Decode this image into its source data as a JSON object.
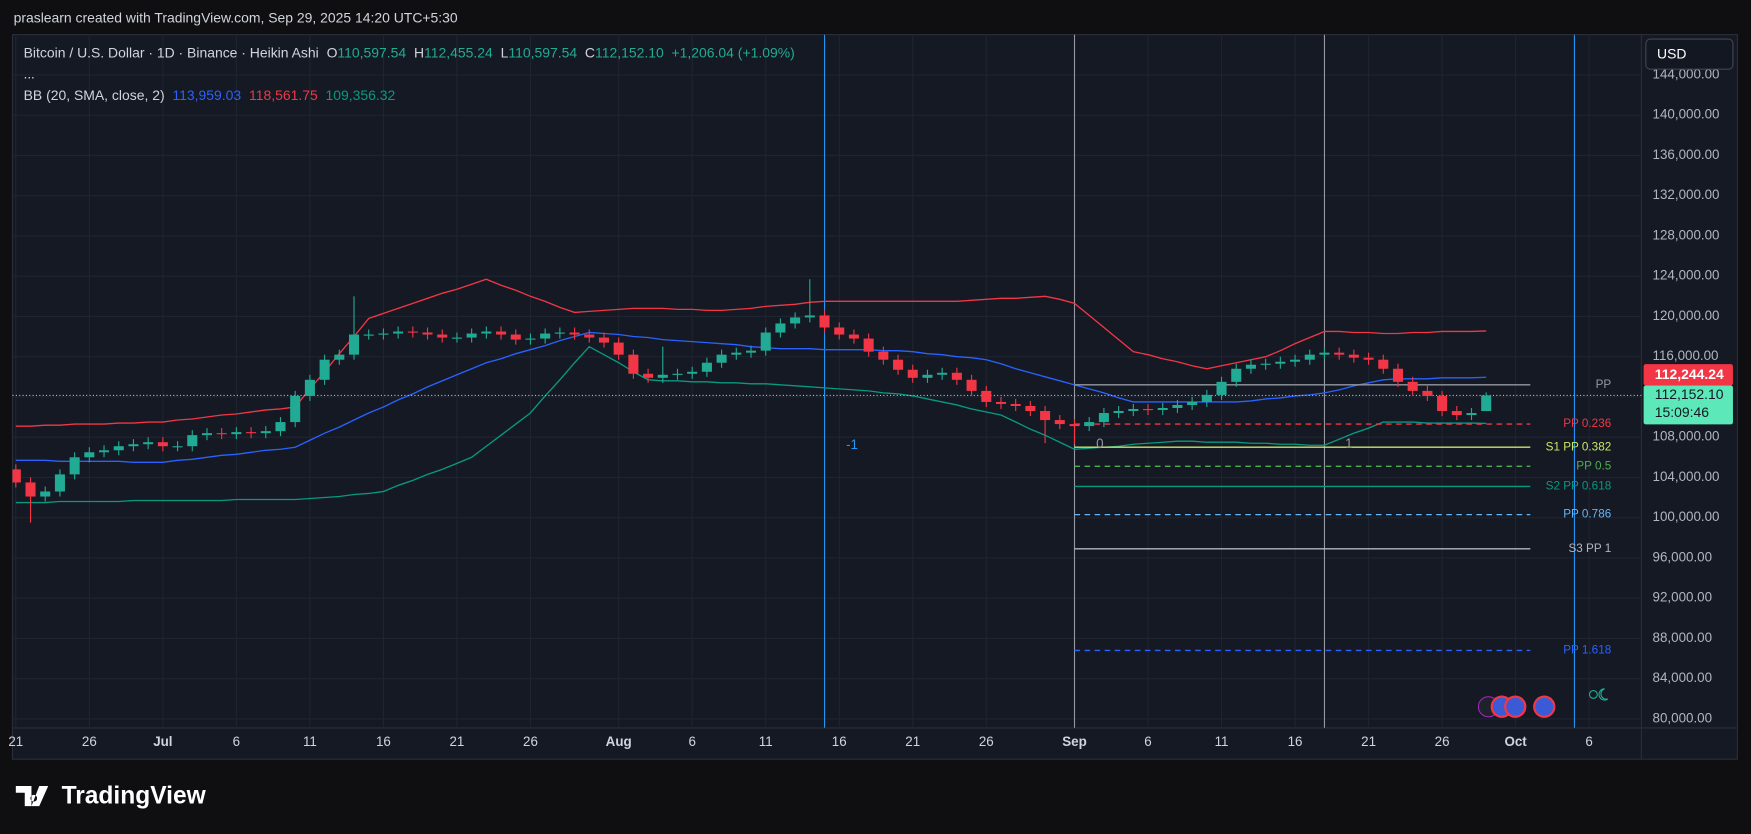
{
  "header": {
    "attribution": "praslearn created with TradingView.com, Sep 29, 2025 14:20 UTC+5:30"
  },
  "footer": {
    "logo": "TradingView"
  },
  "chart_data": {
    "type": "candlestick",
    "title": "Bitcoin / U.S. Dollar · 1D · Binance · Heikin Ashi",
    "ohlc_legend": [
      {
        "label": "O",
        "value": "110,597.54"
      },
      {
        "label": "H",
        "value": "112,455.24"
      },
      {
        "label": "L",
        "value": "110,597.54"
      },
      {
        "label": "C",
        "value": "112,152.10"
      }
    ],
    "change": "+1,206.04 (+1.09%)",
    "more": "...",
    "currency": "USD",
    "up_color": "#22ab94",
    "down_color": "#f23645",
    "categories": [
      "21",
      null,
      null,
      null,
      null,
      "26",
      null,
      null,
      null,
      null,
      "Jul",
      null,
      null,
      null,
      null,
      "6",
      null,
      null,
      null,
      null,
      "11",
      null,
      null,
      null,
      null,
      "16",
      null,
      null,
      null,
      null,
      "21",
      null,
      null,
      null,
      null,
      "26",
      null,
      null,
      null,
      null,
      null,
      "Aug",
      null,
      null,
      null,
      null,
      "6",
      null,
      null,
      null,
      null,
      "11",
      null,
      null,
      null,
      null,
      "16",
      null,
      null,
      null,
      null,
      "21",
      null,
      null,
      null,
      null,
      "26",
      null,
      null,
      null,
      null,
      null,
      "Sep",
      null,
      null,
      null,
      null,
      "6",
      null,
      null,
      null,
      null,
      "11",
      null,
      null,
      null,
      null,
      "16",
      null,
      null,
      null,
      null,
      "21",
      null,
      null,
      null,
      null,
      "26",
      null,
      null,
      null,
      null,
      "Oct",
      null,
      null,
      null,
      null,
      "6",
      null,
      null,
      null
    ],
    "open": [
      104800,
      103500,
      102100,
      102600,
      104300,
      106000,
      106500,
      106700,
      107100,
      107300,
      107500,
      107100,
      107100,
      108200,
      108400,
      108300,
      108500,
      108400,
      108600,
      109500,
      112100,
      113700,
      115700,
      116200,
      118200,
      118200,
      118300,
      118500,
      118400,
      118200,
      117900,
      117900,
      118300,
      118500,
      118200,
      117700,
      117800,
      118300,
      118400,
      118200,
      117900,
      117400,
      116200,
      114300,
      113900,
      114200,
      114300,
      114500,
      115400,
      116200,
      116400,
      116600,
      118400,
      119300,
      119900,
      120100,
      118900,
      118200,
      117800,
      116500,
      115700,
      114700,
      113900,
      114200,
      114400,
      113700,
      112600,
      111500,
      111300,
      111100,
      110600,
      109700,
      109300,
      109100,
      109500,
      110400,
      110600,
      110800,
      110700,
      110900,
      111200,
      111500,
      112200,
      113500,
      114800,
      115200,
      115300,
      115500,
      115700,
      116200,
      116400,
      116200,
      115900,
      115700,
      114800,
      113500,
      112600,
      112100,
      110600,
      110200,
      110597.54,
      null,
      null,
      null,
      null,
      null,
      null,
      null,
      null,
      null,
      null
    ],
    "high": [
      105300,
      104000,
      103100,
      104800,
      106500,
      107000,
      107200,
      107600,
      107800,
      108000,
      108000,
      107600,
      108700,
      108900,
      108900,
      109000,
      109000,
      109100,
      110000,
      112600,
      114200,
      116200,
      116700,
      122000,
      118700,
      118800,
      119000,
      119000,
      118900,
      118700,
      118400,
      118800,
      119000,
      119000,
      118700,
      118300,
      118800,
      118900,
      118900,
      118700,
      118400,
      117900,
      116700,
      114800,
      117000,
      114800,
      115000,
      115900,
      116700,
      116900,
      117100,
      118900,
      119800,
      120400,
      123700,
      120600,
      119400,
      118700,
      118300,
      117000,
      116200,
      115200,
      114700,
      114900,
      114900,
      114200,
      113100,
      112000,
      111800,
      111600,
      111100,
      110200,
      109800,
      110000,
      110900,
      111100,
      111300,
      111300,
      111400,
      111700,
      112000,
      112700,
      114000,
      115300,
      115700,
      115800,
      116000,
      116200,
      116700,
      116900,
      116900,
      116700,
      116400,
      116200,
      115300,
      114000,
      113100,
      112600,
      111100,
      110900,
      112455.24,
      null,
      null,
      null,
      null,
      null,
      null,
      null,
      null,
      null,
      null
    ],
    "low": [
      103000,
      99500,
      101600,
      102100,
      103800,
      105500,
      106000,
      106200,
      106600,
      106800,
      106600,
      106600,
      106600,
      107700,
      107800,
      107800,
      107900,
      107900,
      108100,
      109000,
      111600,
      113200,
      115200,
      115700,
      117700,
      117700,
      117800,
      117900,
      117700,
      117400,
      117400,
      117400,
      117800,
      117700,
      117200,
      117200,
      117300,
      117800,
      117700,
      117400,
      116900,
      115700,
      113800,
      113400,
      113400,
      113700,
      113800,
      114000,
      114900,
      115700,
      115900,
      116100,
      117900,
      118800,
      119400,
      118400,
      117700,
      117300,
      116000,
      115200,
      114200,
      113400,
      113400,
      113700,
      113200,
      112100,
      111000,
      110800,
      110600,
      110100,
      107400,
      108800,
      107300,
      108600,
      109000,
      109900,
      110100,
      110200,
      110200,
      110400,
      110700,
      111000,
      111700,
      113000,
      114300,
      114700,
      114800,
      115000,
      115200,
      115700,
      115700,
      115400,
      115200,
      114300,
      113000,
      112100,
      111600,
      110100,
      109700,
      109700,
      110597.54,
      null,
      null,
      null,
      null,
      null,
      null,
      null,
      null,
      null,
      null
    ],
    "close": [
      103500,
      102100,
      102600,
      104300,
      106000,
      106500,
      106700,
      107100,
      107300,
      107500,
      107100,
      107100,
      108200,
      108400,
      108300,
      108500,
      108400,
      108600,
      109500,
      112100,
      113700,
      115700,
      116200,
      118200,
      118200,
      118300,
      118500,
      118400,
      118200,
      117900,
      117900,
      118300,
      118500,
      118200,
      117700,
      117800,
      118300,
      118400,
      118200,
      117900,
      117400,
      116200,
      114300,
      113900,
      114200,
      114300,
      114500,
      115400,
      116200,
      116400,
      116600,
      118400,
      119300,
      119900,
      120100,
      118900,
      118200,
      117800,
      116500,
      115700,
      114700,
      113900,
      114200,
      114400,
      113700,
      112600,
      111500,
      111300,
      111100,
      110600,
      109700,
      109300,
      109100,
      109500,
      110400,
      110600,
      110800,
      110700,
      110900,
      111200,
      111500,
      112200,
      113500,
      114800,
      115200,
      115300,
      115500,
      115700,
      116200,
      116400,
      116200,
      115900,
      115700,
      114800,
      113500,
      112600,
      112100,
      110600,
      110200,
      110400,
      112152.1,
      null,
      null,
      null,
      null,
      null,
      null,
      null,
      null,
      null,
      null
    ],
    "indicator": {
      "name": "BB (20, SMA, close, 2)",
      "series": [
        {
          "color": "#2962ff",
          "last_value_label": "113,959.03",
          "values": [
            105700,
            105700,
            105700,
            105600,
            105600,
            105600,
            105600,
            105600,
            105500,
            105500,
            105500,
            105700,
            105800,
            106000,
            106200,
            106300,
            106500,
            106700,
            106800,
            107000,
            107700,
            108400,
            109000,
            109700,
            110400,
            111000,
            111700,
            112300,
            113000,
            113600,
            114200,
            114800,
            115400,
            115800,
            116300,
            116700,
            117100,
            117600,
            118000,
            118400,
            118300,
            118200,
            118000,
            117900,
            117700,
            117600,
            117500,
            117400,
            117300,
            117200,
            117000,
            116900,
            116800,
            116800,
            116800,
            116700,
            116700,
            116700,
            116700,
            116600,
            116600,
            116500,
            116300,
            116200,
            116000,
            115900,
            115700,
            115300,
            114800,
            114400,
            114000,
            113600,
            113200,
            112800,
            112400,
            111900,
            111500,
            111500,
            111500,
            111500,
            111500,
            111500,
            111500,
            111500,
            111600,
            111800,
            111900,
            112100,
            112200,
            112400,
            112700,
            113100,
            113400,
            113700,
            113800,
            113800,
            113800,
            113900,
            113900,
            113900,
            113959.03,
            null,
            null,
            null,
            null,
            null,
            null,
            null,
            null,
            null,
            null
          ]
        },
        {
          "color": "#f23645",
          "last_value_label": "118,561.75",
          "values": [
            109100,
            109100,
            109200,
            109200,
            109300,
            109300,
            109300,
            109400,
            109400,
            109500,
            109500,
            109700,
            109800,
            110000,
            110200,
            110300,
            110500,
            110700,
            110800,
            111000,
            112800,
            114500,
            116300,
            118000,
            119800,
            120300,
            120800,
            121300,
            121800,
            122300,
            122700,
            123200,
            123700,
            123100,
            122600,
            122000,
            121500,
            120900,
            120400,
            120500,
            120600,
            120700,
            120800,
            120800,
            120800,
            120700,
            120700,
            120600,
            120600,
            120700,
            120800,
            121000,
            121100,
            121200,
            121400,
            121500,
            121500,
            121500,
            121500,
            121500,
            121500,
            121500,
            121500,
            121500,
            121500,
            121600,
            121700,
            121800,
            121800,
            121900,
            122000,
            121700,
            121300,
            120100,
            118900,
            117700,
            116500,
            116200,
            115800,
            115500,
            115100,
            114800,
            115100,
            115400,
            115700,
            116000,
            116600,
            117300,
            117900,
            118500,
            118500,
            118400,
            118400,
            118300,
            118300,
            118400,
            118400,
            118500,
            118500,
            118500,
            118561.75,
            null,
            null,
            null,
            null,
            null,
            null,
            null,
            null,
            null,
            null
          ]
        },
        {
          "color": "#089981",
          "last_value_label": "109,356.32",
          "values": [
            101500,
            101500,
            101500,
            101600,
            101600,
            101600,
            101600,
            101600,
            101700,
            101700,
            101700,
            101700,
            101700,
            101700,
            101700,
            101800,
            101800,
            101800,
            101800,
            101800,
            101900,
            102000,
            102100,
            102300,
            102400,
            102600,
            103200,
            103700,
            104300,
            104800,
            105400,
            106000,
            107100,
            108200,
            109300,
            110400,
            112100,
            113700,
            115400,
            117000,
            116200,
            115400,
            114500,
            113700,
            113600,
            113600,
            113500,
            113500,
            113400,
            113400,
            113300,
            113300,
            113200,
            113100,
            113000,
            112900,
            112800,
            112700,
            112600,
            112400,
            112300,
            112100,
            111800,
            111500,
            111200,
            110800,
            110500,
            110200,
            109500,
            108800,
            108200,
            107500,
            106800,
            106900,
            107000,
            107100,
            107300,
            107400,
            107500,
            107600,
            107600,
            107500,
            107500,
            107500,
            107400,
            107400,
            107300,
            107300,
            107200,
            107200,
            107800,
            108400,
            108900,
            109500,
            109500,
            109500,
            109400,
            109400,
            109400,
            109400,
            109356.32,
            null,
            null,
            null,
            null,
            null,
            null,
            null,
            null,
            null,
            null
          ]
        }
      ]
    },
    "levels": [
      {
        "label": "PP",
        "value": 113200,
        "color": "#9598a1",
        "dashed": false
      },
      {
        "label": "PP 0.236",
        "value": 109300,
        "color": "#f23645",
        "dashed": true
      },
      {
        "label": "S1 PP 0.382",
        "value": 107000,
        "color": "#c8e66a",
        "dashed": false
      },
      {
        "label": "PP 0.5",
        "value": 105100,
        "color": "#4caf50",
        "dashed": true
      },
      {
        "label": "S2 PP 0.618",
        "value": 103100,
        "color": "#089981",
        "dashed": false
      },
      {
        "label": "PP 0.786",
        "value": 100300,
        "color": "#64b5f6",
        "dashed": true
      },
      {
        "label": "S3 PP 1",
        "value": 96900,
        "color": "#b2b5be",
        "dashed": false
      },
      {
        "label": "PP 1.618",
        "value": 86800,
        "color": "#2962ff",
        "dashed": true
      }
    ],
    "annotations": [
      "-1",
      "0",
      "1"
    ],
    "price_labels": [
      {
        "value": 112244.24,
        "label": "112,244.24",
        "color": "#f23645"
      },
      {
        "value": 112152.1,
        "label": "112,152.10",
        "countdown": "15:09:46",
        "color": "#5ce8b8"
      }
    ],
    "ylim": [
      79100,
      147900
    ],
    "yticks": [
      {
        "value": 80000,
        "label": "80,000.00"
      },
      {
        "value": 84000,
        "label": "84,000.00"
      },
      {
        "value": 88000,
        "label": "88,000.00"
      },
      {
        "value": 92000,
        "label": "92,000.00"
      },
      {
        "value": 96000,
        "label": "96,000.00"
      },
      {
        "value": 100000,
        "label": "100,000.00"
      },
      {
        "value": 104000,
        "label": "104,000.00"
      },
      {
        "value": 108000,
        "label": "108,000.00"
      },
      {
        "value": 112000,
        "label": "112,000.00"
      },
      {
        "value": 116000,
        "label": "116,000.00"
      },
      {
        "value": 120000,
        "label": "120,000.00"
      },
      {
        "value": 124000,
        "label": "124,000.00"
      },
      {
        "value": 128000,
        "label": "128,000.00"
      },
      {
        "value": 132000,
        "label": "132,000.00"
      },
      {
        "value": 136000,
        "label": "136,000.00"
      },
      {
        "value": 140000,
        "label": "140,000.00"
      },
      {
        "value": 144000,
        "label": "144,000.00"
      }
    ],
    "grid": true
  }
}
